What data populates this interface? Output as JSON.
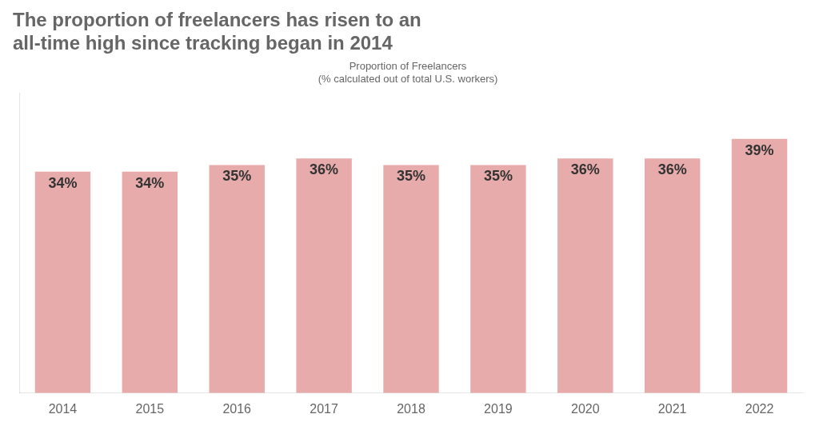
{
  "chart_data": {
    "type": "bar",
    "title": [
      "The proportion of freelancers has risen to an",
      "all-time high since tracking began in 2014"
    ],
    "subtitle": [
      "Proportion of Freelancers",
      "(% calculated out of total U.S. workers)"
    ],
    "categories": [
      "2014",
      "2015",
      "2016",
      "2017",
      "2018",
      "2019",
      "2020",
      "2021",
      "2022"
    ],
    "values": [
      34,
      34,
      35,
      36,
      35,
      35,
      36,
      36,
      39
    ],
    "value_labels": [
      "34%",
      "34%",
      "35%",
      "36%",
      "35%",
      "35%",
      "36%",
      "36%",
      "39%"
    ],
    "color": "#E8ABAB",
    "ylim": [
      0,
      46
    ],
    "grid": false,
    "data_labels": true,
    "tick_labels": "x"
  }
}
